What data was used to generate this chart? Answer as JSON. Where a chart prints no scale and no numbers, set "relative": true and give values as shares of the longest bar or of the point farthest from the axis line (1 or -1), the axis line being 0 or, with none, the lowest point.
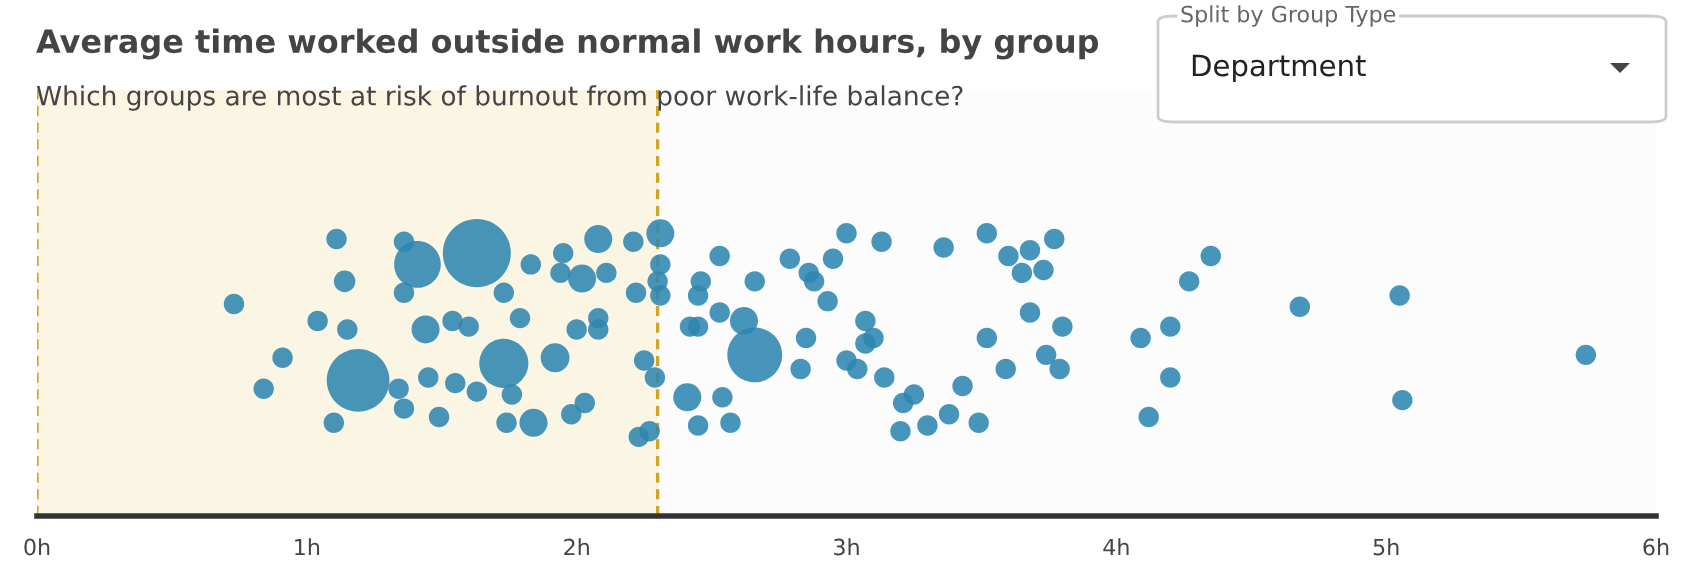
{
  "chart_data": {
    "type": "bubble",
    "title": "Average time worked outside normal work hours, by group",
    "subtitle": "Which groups are most at risk of burnout from poor work-life balance?",
    "annotations": [
      "Split by Group Type",
      "Department"
    ],
    "relative": true,
    "color": "#2e86b0",
    "tick_labels": "x",
    "grid": false,
    "legend": false,
    "xlim": [
      0,
      6
    ],
    "xticks": [
      {
        "value": 0,
        "label": "0h"
      },
      {
        "value": 1,
        "label": "1h"
      },
      {
        "value": 2,
        "label": "2h"
      },
      {
        "value": 3,
        "label": "3h"
      },
      {
        "value": 4,
        "label": "4h"
      },
      {
        "value": 5,
        "label": "5h"
      },
      {
        "value": 6,
        "label": "6h"
      }
    ],
    "bands": [
      {
        "axis": "x",
        "from": 0,
        "to": 2.3,
        "color": "#fbf5e3"
      }
    ],
    "ref_lines": [
      {
        "axis": "x",
        "value": 0,
        "color": "#d4a520",
        "line_style": "dashed"
      },
      {
        "axis": "x",
        "value": 2.3,
        "color": "#d4a520",
        "line_style": "dashed"
      }
    ],
    "x": [
      1.11,
      1.36,
      1.41,
      1.63,
      1.83,
      1.95,
      2.08,
      2.21,
      2.31,
      1.14,
      1.36,
      1.73,
      1.94,
      2.02,
      2.11,
      2.22,
      2.31,
      2.3,
      2.31,
      0.73,
      1.04,
      1.15,
      1.44,
      1.54,
      1.6,
      1.79,
      2.0,
      2.08,
      2.08,
      0.91,
      1.19,
      1.45,
      1.55,
      1.63,
      1.73,
      1.92,
      2.25,
      2.29,
      0.84,
      1.34,
      1.36,
      1.76,
      1.49,
      1.1,
      1.74,
      1.84,
      1.98,
      2.03,
      2.23,
      2.27,
      2.41,
      2.53,
      2.46,
      2.45,
      2.66,
      2.79,
      2.86,
      2.88,
      2.95,
      2.93,
      3.0,
      3.13,
      3.36,
      3.52,
      3.6,
      3.68,
      3.65,
      3.73,
      3.77,
      4.35,
      4.27,
      2.42,
      2.45,
      2.53,
      2.62,
      2.66,
      2.85,
      2.83,
      3.07,
      3.07,
      3.1,
      3.0,
      3.04,
      3.14,
      3.52,
      3.68,
      3.8,
      3.74,
      3.79,
      3.59,
      3.43,
      3.25,
      3.21,
      3.38,
      3.49,
      3.3,
      3.2,
      2.54,
      2.45,
      2.57,
      4.09,
      4.2,
      4.2,
      4.12,
      4.68,
      5.05,
      5.06,
      5.74
    ],
    "values": [
      0.98,
      0.97,
      0.89,
      0.93,
      0.89,
      0.93,
      0.98,
      0.97,
      1.0,
      0.83,
      0.79,
      0.79,
      0.86,
      0.84,
      0.86,
      0.79,
      0.89,
      0.83,
      0.78,
      0.75,
      0.69,
      0.66,
      0.66,
      0.69,
      0.67,
      0.7,
      0.66,
      0.7,
      0.66,
      0.56,
      0.48,
      0.49,
      0.47,
      0.44,
      0.54,
      0.56,
      0.55,
      0.49,
      0.45,
      0.45,
      0.38,
      0.43,
      0.35,
      0.33,
      0.33,
      0.33,
      0.36,
      0.4,
      0.28,
      0.3,
      0.42,
      0.92,
      0.83,
      0.78,
      0.83,
      0.91,
      0.86,
      0.83,
      0.91,
      0.76,
      1.0,
      0.97,
      0.95,
      1.0,
      0.92,
      0.94,
      0.86,
      0.87,
      0.98,
      0.92,
      0.83,
      0.67,
      0.67,
      0.72,
      0.69,
      0.57,
      0.63,
      0.52,
      0.69,
      0.61,
      0.63,
      0.55,
      0.52,
      0.49,
      0.63,
      0.72,
      0.67,
      0.57,
      0.52,
      0.52,
      0.46,
      0.43,
      0.4,
      0.36,
      0.33,
      0.32,
      0.3,
      0.42,
      0.32,
      0.33,
      0.63,
      0.67,
      0.49,
      0.35,
      0.74,
      0.78,
      0.41,
      0.57
    ],
    "sizes": [
      0.09,
      0.09,
      0.47,
      1,
      0.09,
      0.09,
      0.17,
      0.09,
      0.17,
      0.1,
      0.09,
      0.09,
      0.09,
      0.17,
      0.09,
      0.09,
      0.09,
      0.09,
      0.09,
      0.09,
      0.09,
      0.09,
      0.17,
      0.09,
      0.09,
      0.09,
      0.09,
      0.09,
      0.09,
      0.09,
      0.85,
      0.09,
      0.09,
      0.09,
      0.52,
      0.18,
      0.09,
      0.09,
      0.09,
      0.09,
      0.09,
      0.09,
      0.09,
      0.09,
      0.09,
      0.17,
      0.09,
      0.09,
      0.09,
      0.09,
      0.17,
      0.09,
      0.09,
      0.09,
      0.09,
      0.09,
      0.09,
      0.09,
      0.09,
      0.09,
      0.09,
      0.09,
      0.09,
      0.09,
      0.09,
      0.09,
      0.09,
      0.09,
      0.09,
      0.09,
      0.09,
      0.09,
      0.09,
      0.09,
      0.17,
      0.65,
      0.09,
      0.09,
      0.09,
      0.09,
      0.09,
      0.09,
      0.09,
      0.09,
      0.09,
      0.09,
      0.09,
      0.09,
      0.09,
      0.09,
      0.09,
      0.09,
      0.09,
      0.09,
      0.09,
      0.09,
      0.09,
      0.09,
      0.09,
      0.09,
      0.09,
      0.09,
      0.09,
      0.09,
      0.09,
      0.09,
      0.09,
      0.09
    ]
  }
}
